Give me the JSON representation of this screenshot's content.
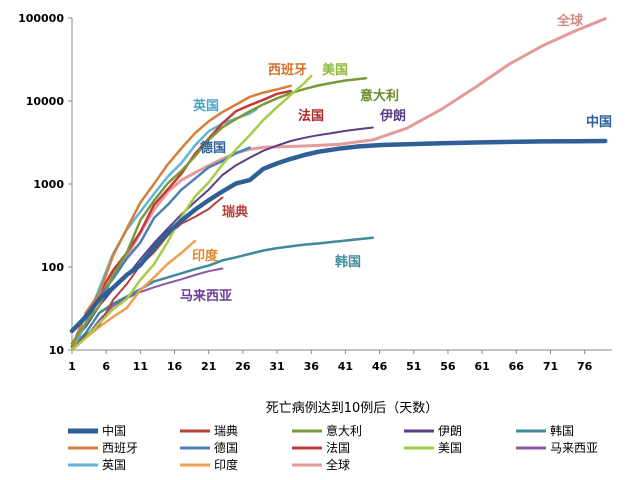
{
  "chart_data": {
    "type": "line",
    "xlabel": "死亡病例达到10例后（天数）",
    "ylabel": "",
    "yscale": "log",
    "ylim": [
      10,
      100000
    ],
    "xlim": [
      1,
      80
    ],
    "x_ticks": [
      1,
      6,
      11,
      16,
      21,
      26,
      31,
      36,
      41,
      46,
      51,
      56,
      61,
      66,
      71,
      76
    ],
    "y_ticks": [
      10,
      100,
      1000,
      10000,
      100000
    ],
    "y_tick_labels": [
      "10",
      "100",
      "1000",
      "10000",
      "100000"
    ],
    "grid": false,
    "legend_position": "bottom",
    "series": [
      {
        "name": "中国",
        "color": "#2e5f97",
        "width": 4.5,
        "label": "中国",
        "label_color": "#2e5f97",
        "points": [
          [
            1,
            17
          ],
          [
            3,
            25
          ],
          [
            5,
            41
          ],
          [
            7,
            56
          ],
          [
            9,
            80
          ],
          [
            11,
            106
          ],
          [
            13,
            170
          ],
          [
            15,
            259
          ],
          [
            17,
            362
          ],
          [
            19,
            490
          ],
          [
            21,
            638
          ],
          [
            23,
            813
          ],
          [
            25,
            1018
          ],
          [
            27,
            1113
          ],
          [
            29,
            1523
          ],
          [
            31,
            1770
          ],
          [
            33,
            2004
          ],
          [
            35,
            2236
          ],
          [
            37,
            2445
          ],
          [
            40,
            2663
          ],
          [
            43,
            2838
          ],
          [
            46,
            2943
          ],
          [
            50,
            3015
          ],
          [
            55,
            3097
          ],
          [
            60,
            3160
          ],
          [
            65,
            3213
          ],
          [
            70,
            3261
          ],
          [
            75,
            3281
          ],
          [
            79,
            3295
          ]
        ]
      },
      {
        "name": "瑞典",
        "color": "#b5413b",
        "width": 2,
        "label": "瑞典",
        "label_color": "#b5413b",
        "points": [
          [
            1,
            10
          ],
          [
            3,
            15
          ],
          [
            5,
            20
          ],
          [
            7,
            40
          ],
          [
            9,
            62
          ],
          [
            11,
            105
          ],
          [
            13,
            150
          ],
          [
            15,
            239
          ],
          [
            17,
            333
          ],
          [
            19,
            401
          ],
          [
            21,
            500
          ],
          [
            22,
            590
          ],
          [
            23,
            687
          ]
        ]
      },
      {
        "name": "意大利",
        "color": "#7a9a3a",
        "width": 2.5,
        "label": "意大利",
        "label_color": "#6a8a2a",
        "points": [
          [
            1,
            12
          ],
          [
            3,
            21
          ],
          [
            5,
            34
          ],
          [
            7,
            79
          ],
          [
            9,
            148
          ],
          [
            11,
            366
          ],
          [
            13,
            631
          ],
          [
            15,
            1016
          ],
          [
            17,
            1441
          ],
          [
            19,
            2158
          ],
          [
            21,
            3405
          ],
          [
            23,
            4825
          ],
          [
            25,
            6077
          ],
          [
            27,
            7503
          ],
          [
            29,
            9134
          ],
          [
            31,
            10779
          ],
          [
            33,
            12428
          ],
          [
            35,
            13915
          ],
          [
            37,
            15362
          ],
          [
            39,
            16523
          ],
          [
            41,
            17669
          ],
          [
            44,
            18849
          ]
        ]
      },
      {
        "name": "伊朗",
        "color": "#5b3f86",
        "width": 2,
        "label": "伊朗",
        "label_color": "#5b3f86",
        "points": [
          [
            1,
            12
          ],
          [
            3,
            19
          ],
          [
            5,
            34
          ],
          [
            7,
            54
          ],
          [
            9,
            77
          ],
          [
            11,
            124
          ],
          [
            13,
            194
          ],
          [
            15,
            291
          ],
          [
            17,
            429
          ],
          [
            19,
            611
          ],
          [
            21,
            853
          ],
          [
            23,
            1284
          ],
          [
            25,
            1685
          ],
          [
            27,
            2077
          ],
          [
            29,
            2517
          ],
          [
            31,
            2898
          ],
          [
            33,
            3294
          ],
          [
            35,
            3603
          ],
          [
            37,
            3872
          ],
          [
            39,
            4110
          ],
          [
            41,
            4358
          ],
          [
            43,
            4585
          ],
          [
            45,
            4800
          ]
        ]
      },
      {
        "name": "韩国",
        "color": "#3f8a9b",
        "width": 2.5,
        "label": "韩国",
        "label_color": "#3f8a9b",
        "points": [
          [
            1,
            11
          ],
          [
            3,
            16
          ],
          [
            5,
            28
          ],
          [
            7,
            36
          ],
          [
            9,
            44
          ],
          [
            11,
            54
          ],
          [
            13,
            67
          ],
          [
            15,
            75
          ],
          [
            17,
            84
          ],
          [
            19,
            94
          ],
          [
            21,
            104
          ],
          [
            23,
            120
          ],
          [
            25,
            131
          ],
          [
            27,
            144
          ],
          [
            29,
            158
          ],
          [
            31,
            169
          ],
          [
            33,
            177
          ],
          [
            35,
            186
          ],
          [
            37,
            192
          ],
          [
            39,
            200
          ],
          [
            41,
            208
          ],
          [
            43,
            217
          ],
          [
            45,
            225
          ]
        ]
      },
      {
        "name": "西班牙",
        "color": "#d57f3a",
        "width": 2.5,
        "label": "西班牙",
        "label_color": "#d5702a",
        "points": [
          [
            1,
            10
          ],
          [
            3,
            28
          ],
          [
            5,
            48
          ],
          [
            7,
            136
          ],
          [
            9,
            288
          ],
          [
            11,
            598
          ],
          [
            13,
            1002
          ],
          [
            15,
            1720
          ],
          [
            17,
            2696
          ],
          [
            19,
            4089
          ],
          [
            21,
            5690
          ],
          [
            23,
            7340
          ],
          [
            25,
            9053
          ],
          [
            27,
            11198
          ],
          [
            29,
            12641
          ],
          [
            31,
            13798
          ],
          [
            33,
            15238
          ]
        ]
      },
      {
        "name": "德国",
        "color": "#4a7fb8",
        "width": 2.5,
        "label": "德国",
        "label_color": "#2e5f97",
        "points": [
          [
            1,
            11
          ],
          [
            3,
            20
          ],
          [
            5,
            44
          ],
          [
            7,
            72
          ],
          [
            9,
            126
          ],
          [
            11,
            198
          ],
          [
            13,
            389
          ],
          [
            15,
            560
          ],
          [
            17,
            854
          ],
          [
            19,
            1158
          ],
          [
            21,
            1584
          ],
          [
            23,
            1890
          ],
          [
            25,
            2349
          ],
          [
            27,
            2736
          ]
        ]
      },
      {
        "name": "法国",
        "color": "#c43a3a",
        "width": 2.5,
        "label": "法国",
        "label_color": "#b02a2a",
        "points": [
          [
            1,
            11
          ],
          [
            3,
            27
          ],
          [
            5,
            48
          ],
          [
            7,
            91
          ],
          [
            9,
            148
          ],
          [
            11,
            264
          ],
          [
            13,
            562
          ],
          [
            15,
            860
          ],
          [
            17,
            1331
          ],
          [
            19,
            2311
          ],
          [
            21,
            3523
          ],
          [
            23,
            5387
          ],
          [
            25,
            7560
          ],
          [
            27,
            8911
          ],
          [
            29,
            10328
          ],
          [
            31,
            12210
          ],
          [
            33,
            13197
          ]
        ]
      },
      {
        "name": "美国",
        "color": "#a7cc4a",
        "width": 2.5,
        "label": "美国",
        "label_color": "#8fbb3a",
        "points": [
          [
            1,
            10
          ],
          [
            3,
            14
          ],
          [
            5,
            21
          ],
          [
            7,
            31
          ],
          [
            9,
            41
          ],
          [
            11,
            70
          ],
          [
            13,
            108
          ],
          [
            15,
            200
          ],
          [
            17,
            402
          ],
          [
            19,
            706
          ],
          [
            21,
            1046
          ],
          [
            23,
            1711
          ],
          [
            25,
            2610
          ],
          [
            27,
            3873
          ],
          [
            29,
            5926
          ],
          [
            31,
            8454
          ],
          [
            33,
            11793
          ],
          [
            35,
            16478
          ],
          [
            36,
            20000
          ]
        ]
      },
      {
        "name": "马来西亚",
        "color": "#8a5aa8",
        "width": 2,
        "label": "马来西亚",
        "label_color": "#6a3f96",
        "points": [
          [
            1,
            10
          ],
          [
            3,
            14
          ],
          [
            5,
            23
          ],
          [
            7,
            34
          ],
          [
            9,
            42
          ],
          [
            11,
            50
          ],
          [
            13,
            57
          ],
          [
            15,
            64
          ],
          [
            17,
            71
          ],
          [
            19,
            80
          ],
          [
            21,
            89
          ],
          [
            23,
            96
          ]
        ]
      },
      {
        "name": "英国",
        "color": "#5fb5d5",
        "width": 2.5,
        "label": "英国",
        "label_color": "#4aa5c5",
        "points": [
          [
            1,
            10
          ],
          [
            3,
            21
          ],
          [
            5,
            55
          ],
          [
            7,
            144
          ],
          [
            9,
            281
          ],
          [
            11,
            463
          ],
          [
            13,
            759
          ],
          [
            15,
            1228
          ],
          [
            17,
            1789
          ],
          [
            19,
            2921
          ],
          [
            21,
            4313
          ],
          [
            23,
            5373
          ],
          [
            25,
            6159
          ],
          [
            27,
            7097
          ],
          [
            28,
            7978
          ]
        ]
      },
      {
        "name": "印度",
        "color": "#f0a050",
        "width": 2.5,
        "label": "印度",
        "label_color": "#e08a30",
        "points": [
          [
            1,
            10
          ],
          [
            3,
            14
          ],
          [
            5,
            19
          ],
          [
            7,
            25
          ],
          [
            9,
            32
          ],
          [
            11,
            53
          ],
          [
            13,
            75
          ],
          [
            15,
            109
          ],
          [
            17,
            148
          ],
          [
            19,
            206
          ]
        ]
      },
      {
        "name": "全球",
        "color": "#e59a9a",
        "width": 3,
        "label": "全球",
        "label_color": "#d58a8a",
        "points": [
          [
            1,
            17
          ],
          [
            3,
            26
          ],
          [
            5,
            42
          ],
          [
            7,
            81
          ],
          [
            9,
            131
          ],
          [
            11,
            259
          ],
          [
            13,
            490
          ],
          [
            15,
            803
          ],
          [
            17,
            1113
          ],
          [
            19,
            1367
          ],
          [
            21,
            1667
          ],
          [
            23,
            2009
          ],
          [
            25,
            2360
          ],
          [
            27,
            2619
          ],
          [
            29,
            2771
          ],
          [
            31,
            2800
          ],
          [
            35,
            2870
          ],
          [
            40,
            3000
          ],
          [
            45,
            3400
          ],
          [
            50,
            4700
          ],
          [
            55,
            7900
          ],
          [
            60,
            14600
          ],
          [
            65,
            28000
          ],
          [
            70,
            47000
          ],
          [
            75,
            72000
          ],
          [
            79,
            98000
          ]
        ]
      }
    ]
  }
}
